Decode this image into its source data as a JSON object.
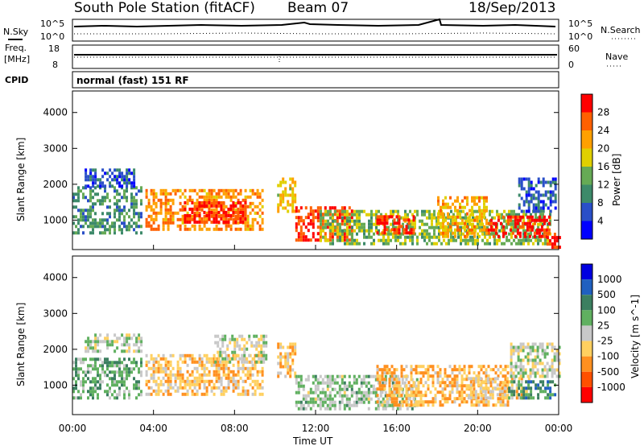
{
  "header": {
    "station": "South Pole Station (fitACF)",
    "beam": "Beam 07",
    "date": "18/Sep/2013"
  },
  "top_panels": {
    "nsky_label": "N.Sky",
    "nsearch_label": "N.Search",
    "noise_ticks_top": "10^5",
    "noise_ticks_bottom": "10^0",
    "freq_label_1": "Freq.",
    "freq_label_2": "[MHz]",
    "freq_ticks": [
      "18",
      "8"
    ],
    "nave_label": "Nave",
    "nave_ticks": [
      "60",
      "0"
    ],
    "cpid_label": "CPID",
    "cpid_text": "normal (fast) 151 RF"
  },
  "colors": {
    "power_scale": [
      "#0000ff",
      "#2a4fc8",
      "#3d8a6a",
      "#66aa55",
      "#e0d000",
      "#ffa000",
      "#ff6000",
      "#ff0000"
    ],
    "velocity_scale": [
      "#0000e0",
      "#2060c0",
      "#3c7f60",
      "#60b060",
      "#c8c8c8",
      "#ffd060",
      "#ff9020",
      "#ff5000",
      "#ff0000"
    ]
  },
  "chart_data": [
    {
      "type": "heatmap",
      "title": "",
      "xlabel": "Time UT",
      "ylabel": "Slant Range [km]",
      "xlim": [
        0,
        24
      ],
      "ylim": [
        180,
        4600
      ],
      "x_ticks": [
        "00:00",
        "04:00",
        "08:00",
        "12:00",
        "16:00",
        "20:00",
        "00:00"
      ],
      "y_ticks": [
        "1000",
        "2000",
        "3000",
        "4000"
      ],
      "colorbar": {
        "label": "Power [dB]",
        "ticks": [
          "4",
          "8",
          "12",
          "16",
          "20",
          "24",
          "28"
        ],
        "range": [
          0,
          30
        ]
      },
      "regions": [
        {
          "t0": 0.0,
          "t1": 3.4,
          "r0": 600,
          "r1": 1900,
          "value": 10
        },
        {
          "t0": 0.6,
          "t1": 3.0,
          "r0": 1900,
          "r1": 2400,
          "value": 6
        },
        {
          "t0": 3.6,
          "t1": 9.4,
          "r0": 700,
          "r1": 1800,
          "value": 22
        },
        {
          "t0": 5.5,
          "t1": 8.5,
          "r0": 900,
          "r1": 1500,
          "value": 27
        },
        {
          "t0": 10.1,
          "t1": 11.0,
          "r0": 1200,
          "r1": 2100,
          "value": 18
        },
        {
          "t0": 11.0,
          "t1": 13.8,
          "r0": 400,
          "r1": 1300,
          "value": 26
        },
        {
          "t0": 12.2,
          "t1": 23.6,
          "r0": 300,
          "r1": 1200,
          "value": 14
        },
        {
          "t0": 15.0,
          "t1": 16.8,
          "r0": 600,
          "r1": 1100,
          "value": 27
        },
        {
          "t0": 18.0,
          "t1": 20.5,
          "r0": 500,
          "r1": 1600,
          "value": 20
        },
        {
          "t0": 20.5,
          "t1": 23.5,
          "r0": 500,
          "r1": 1100,
          "value": 28
        },
        {
          "t0": 22.0,
          "t1": 23.8,
          "r0": 1200,
          "r1": 2100,
          "value": 6
        },
        {
          "t0": 23.4,
          "t1": 24.0,
          "r0": 200,
          "r1": 600,
          "value": 28
        }
      ]
    },
    {
      "type": "heatmap",
      "title": "",
      "xlabel": "Time UT",
      "ylabel": "Slant Range [km]",
      "xlim": [
        0,
        24
      ],
      "ylim": [
        180,
        4600
      ],
      "x_ticks": [
        "00:00",
        "04:00",
        "08:00",
        "12:00",
        "16:00",
        "20:00",
        "00:00"
      ],
      "y_ticks": [
        "1000",
        "2000",
        "3000",
        "4000"
      ],
      "colorbar": {
        "label": "Velocity [m s^-1]",
        "ticks": [
          "1000",
          "500",
          "100",
          "25",
          "-25",
          "-100",
          "-500",
          "-1000"
        ],
        "range": [
          -1200,
          1200
        ]
      },
      "regions": [
        {
          "t0": 0.0,
          "t1": 3.4,
          "r0": 600,
          "r1": 1700,
          "value": 300
        },
        {
          "t0": 0.6,
          "t1": 3.4,
          "r0": 1900,
          "r1": 2400,
          "value": 0
        },
        {
          "t0": 3.6,
          "t1": 9.4,
          "r0": 700,
          "r1": 1800,
          "value": -300
        },
        {
          "t0": 7.0,
          "t1": 9.6,
          "r0": 1600,
          "r1": 2400,
          "value": 0
        },
        {
          "t0": 10.1,
          "t1": 11.0,
          "r0": 1200,
          "r1": 2100,
          "value": -300
        },
        {
          "t0": 11.0,
          "t1": 17.0,
          "r0": 300,
          "r1": 1200,
          "value": 150
        },
        {
          "t0": 15.0,
          "t1": 21.5,
          "r0": 400,
          "r1": 1500,
          "value": -350
        },
        {
          "t0": 19.5,
          "t1": 22.5,
          "r0": 600,
          "r1": 1200,
          "value": -200
        },
        {
          "t0": 21.5,
          "t1": 23.8,
          "r0": 600,
          "r1": 1100,
          "value": 500
        },
        {
          "t0": 21.6,
          "t1": 24.0,
          "r0": 1200,
          "r1": 2100,
          "value": 0
        }
      ]
    }
  ]
}
